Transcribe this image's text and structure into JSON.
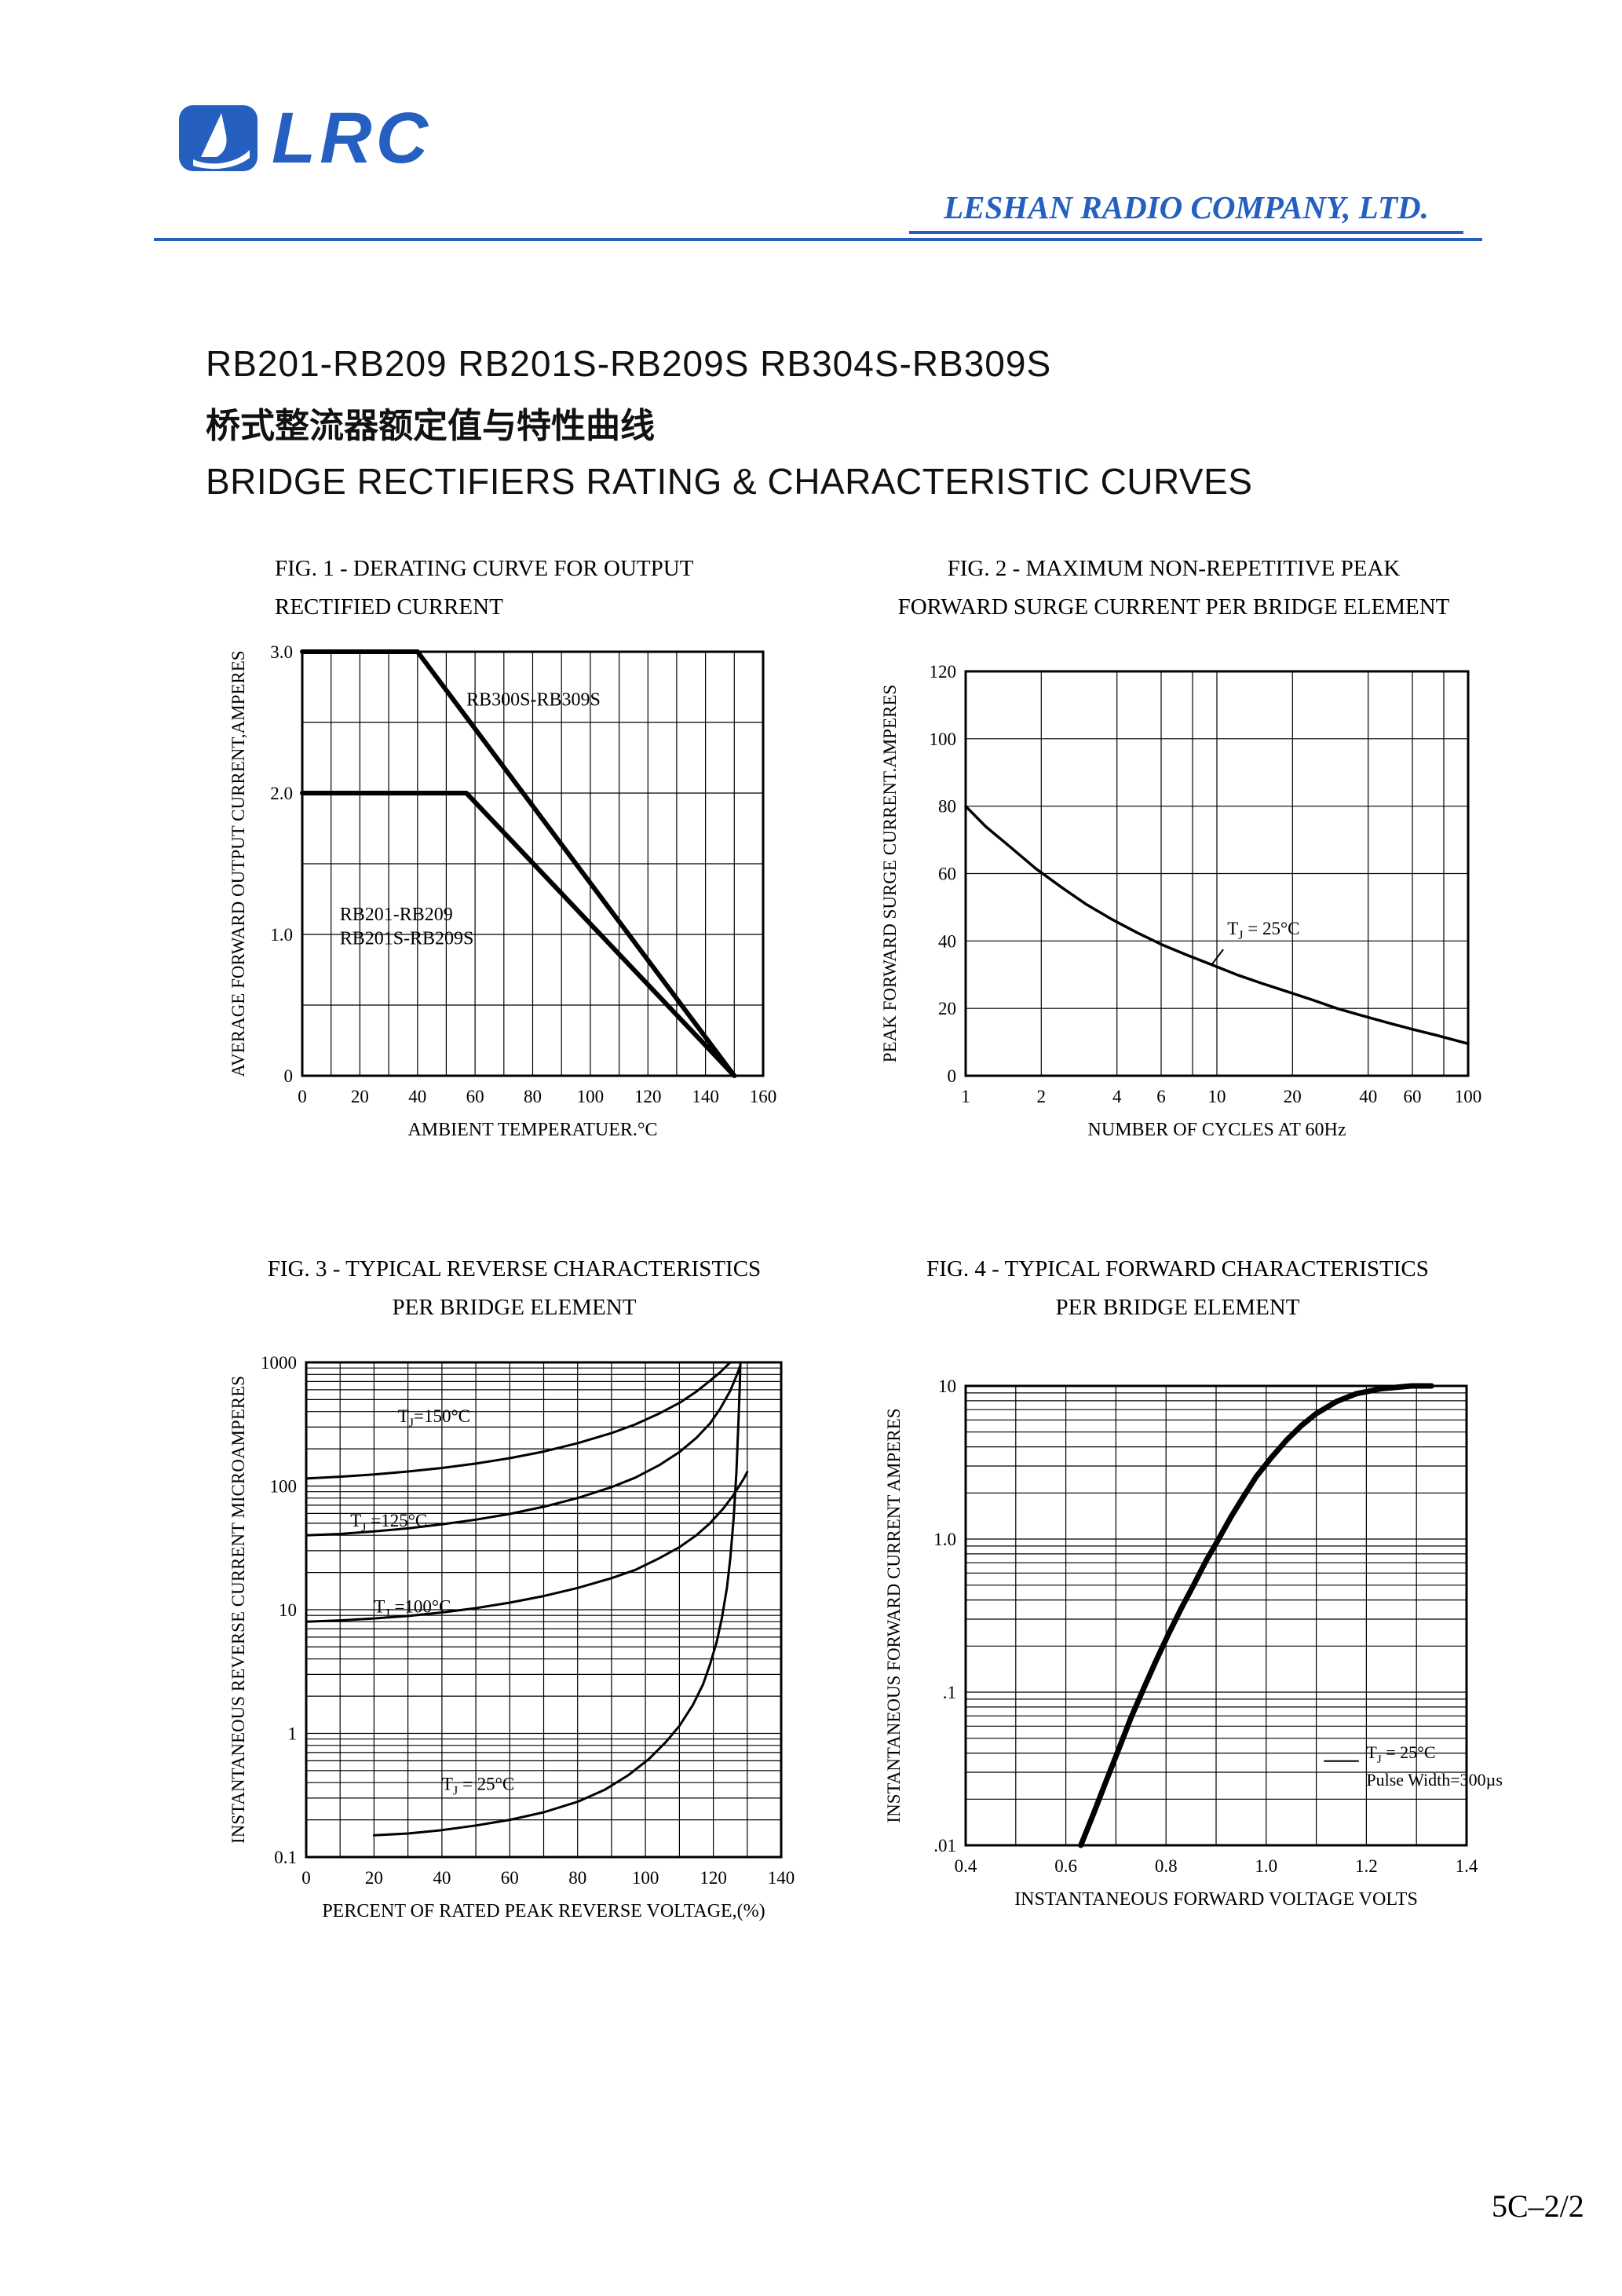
{
  "colors": {
    "accent_blue": "#2560c0",
    "ink": "#000000"
  },
  "header": {
    "logo_text": "LRC",
    "logo_icon": "sailboat-icon",
    "company": "LESHAN RADIO COMPANY, LTD."
  },
  "title_block": {
    "part_numbers": "RB201-RB209 RB201S-RB209S RB304S-RB309S",
    "chinese": "桥式整流器额定值与特性曲线",
    "english": "BRIDGE RECTIFIERS RATING & CHARACTERISTIC CURVES"
  },
  "footer": {
    "page_number": "5C–2/2"
  },
  "chart_data": [
    {
      "id": "fig1",
      "type": "line",
      "title_lines": [
        "FIG. 1 - DERATING CURVE FOR OUTPUT",
        "RECTIFIED CURRENT"
      ],
      "xlabel": "AMBIENT TEMPERATUER.°C",
      "ylabel": "AVERAGE FORWARD OUTPUT CURRENT,AMPERES",
      "x_scale": "linear",
      "y_scale": "linear",
      "xlim": [
        0,
        160
      ],
      "ylim": [
        0,
        3
      ],
      "margins": {
        "l": 100,
        "t": 25,
        "r": 18,
        "b": 100
      },
      "x_grid": {
        "step": 10
      },
      "y_grid": {
        "step": 0.5
      },
      "x_ticks": [
        {
          "v": 0,
          "label": "0"
        },
        {
          "v": 20,
          "label": "20"
        },
        {
          "v": 40,
          "label": "40"
        },
        {
          "v": 60,
          "label": "60"
        },
        {
          "v": 80,
          "label": "80"
        },
        {
          "v": 100,
          "label": "100"
        },
        {
          "v": 120,
          "label": "120"
        },
        {
          "v": 140,
          "label": "140"
        },
        {
          "v": 160,
          "label": "160"
        }
      ],
      "y_ticks": [
        {
          "v": 0,
          "label": "0"
        },
        {
          "v": 1,
          "label": "1.0"
        },
        {
          "v": 2,
          "label": "2.0"
        },
        {
          "v": 3,
          "label": "3.0"
        }
      ],
      "series": [
        {
          "name": "RB300S-RB309S",
          "width": 6,
          "points": [
            [
              0,
              3
            ],
            [
              40,
              3
            ],
            [
              150,
              0
            ]
          ]
        },
        {
          "name": "RB201-RB209 RB201S-RB209S",
          "width": 6,
          "points": [
            [
              0,
              2
            ],
            [
              57,
              2
            ],
            [
              150,
              0
            ]
          ]
        }
      ],
      "annotations": [
        {
          "text": "RB300S-RB309S",
          "x": 57,
          "y": 2.62,
          "size": 24
        },
        {
          "text": "RB201-RB209",
          "x": 13,
          "y": 1.1,
          "size": 24
        },
        {
          "text": "RB201S-RB209S",
          "x": 13,
          "y": 0.93,
          "size": 24
        }
      ],
      "leaders": []
    },
    {
      "id": "fig2",
      "type": "line",
      "title_lines": [
        "FIG. 2 - MAXIMUM NON-REPETITIVE PEAK",
        "FORWARD SURGE CURRENT PER BRIDGE ELEMENT"
      ],
      "xlabel": "NUMBER OF CYCLES AT 60Hz",
      "ylabel": "PEAK FORWARD SURGE CURRENT.AMPERES",
      "x_scale": "log",
      "y_scale": "linear",
      "xlim": [
        1,
        100
      ],
      "ylim": [
        0,
        120
      ],
      "margins": {
        "l": 115,
        "t": 50,
        "r": 10,
        "b": 100
      },
      "x_grid": {
        "values": [
          1,
          2,
          4,
          6,
          8,
          10,
          20,
          40,
          60,
          80,
          100
        ]
      },
      "y_grid": {
        "step": 20
      },
      "x_ticks": [
        {
          "v": 1,
          "label": "1"
        },
        {
          "v": 2,
          "label": "2"
        },
        {
          "v": 4,
          "label": "4"
        },
        {
          "v": 6,
          "label": "6"
        },
        {
          "v": 10,
          "label": "10"
        },
        {
          "v": 20,
          "label": "20"
        },
        {
          "v": 40,
          "label": "40"
        },
        {
          "v": 60,
          "label": "60"
        },
        {
          "v": 100,
          "label": "100"
        }
      ],
      "y_ticks": [
        {
          "v": 0,
          "label": "0"
        },
        {
          "v": 20,
          "label": "20"
        },
        {
          "v": 40,
          "label": "40"
        },
        {
          "v": 60,
          "label": "60"
        },
        {
          "v": 80,
          "label": "80"
        },
        {
          "v": 100,
          "label": "100"
        },
        {
          "v": 120,
          "label": "120"
        }
      ],
      "series": [
        {
          "name": "surge-current",
          "width": 3.5,
          "points": [
            [
              1,
              80
            ],
            [
              1.2,
              74
            ],
            [
              1.5,
              68
            ],
            [
              1.9,
              61.5
            ],
            [
              2.4,
              56
            ],
            [
              3,
              51
            ],
            [
              3.8,
              46.5
            ],
            [
              4.8,
              42.5
            ],
            [
              6,
              39
            ],
            [
              7.5,
              36
            ],
            [
              9.5,
              33
            ],
            [
              12,
              30
            ],
            [
              15,
              27.5
            ],
            [
              19,
              25
            ],
            [
              24,
              22.5
            ],
            [
              30,
              20
            ],
            [
              38,
              17.8
            ],
            [
              48,
              15.7
            ],
            [
              60,
              13.8
            ],
            [
              75,
              12
            ],
            [
              100,
              9.5
            ]
          ]
        }
      ],
      "annotations": [
        {
          "text": "T_{J} = 25°C",
          "x": 11,
          "y": 42,
          "size": 23
        }
      ],
      "leaders": [
        [
          [
            10.6,
            37.5
          ],
          [
            9.5,
            32.8
          ]
        ]
      ]
    },
    {
      "id": "fig3",
      "type": "line",
      "title_lines": [
        "FIG. 3 - TYPICAL REVERSE CHARACTERISTICS",
        "PER BRIDGE ELEMENT"
      ],
      "xlabel": "PERCENT OF RATED PEAK REVERSE VOLTAGE,(%)",
      "ylabel": "INSTANTANEOUS REVERSE CURRENT MICROAMPERES",
      "x_scale": "linear",
      "y_scale": "log",
      "xlim": [
        0,
        140
      ],
      "ylim": [
        0.1,
        1000
      ],
      "margins": {
        "l": 105,
        "t": 45,
        "r": 20,
        "b": 115
      },
      "x_grid": {
        "step": 10
      },
      "y_grid": {
        "log": true
      },
      "x_ticks": [
        {
          "v": 0,
          "label": "0"
        },
        {
          "v": 20,
          "label": "20"
        },
        {
          "v": 40,
          "label": "40"
        },
        {
          "v": 60,
          "label": "60"
        },
        {
          "v": 80,
          "label": "80"
        },
        {
          "v": 100,
          "label": "100"
        },
        {
          "v": 120,
          "label": "120"
        },
        {
          "v": 140,
          "label": "140"
        }
      ],
      "y_ticks": [
        {
          "v": 0.1,
          "label": "0.1"
        },
        {
          "v": 1,
          "label": "1"
        },
        {
          "v": 10,
          "label": "10"
        },
        {
          "v": 100,
          "label": "100"
        },
        {
          "v": 1000,
          "label": "1000"
        }
      ],
      "series": [
        {
          "name": "Tj=150C",
          "width": 3,
          "points": [
            [
              0,
              115
            ],
            [
              10,
              119
            ],
            [
              20,
              124
            ],
            [
              30,
              131
            ],
            [
              40,
              140
            ],
            [
              50,
              152
            ],
            [
              60,
              168
            ],
            [
              70,
              190
            ],
            [
              80,
              222
            ],
            [
              90,
              268
            ],
            [
              97,
              315
            ],
            [
              104,
              385
            ],
            [
              110,
              470
            ],
            [
              115,
              580
            ],
            [
              119,
              710
            ],
            [
              122,
              830
            ],
            [
              124,
              940
            ],
            [
              125,
              1000
            ]
          ]
        },
        {
          "name": "Tj=125C",
          "width": 3,
          "points": [
            [
              0,
              40
            ],
            [
              10,
              41
            ],
            [
              20,
              43
            ],
            [
              30,
              45.5
            ],
            [
              40,
              49
            ],
            [
              50,
              53.5
            ],
            [
              60,
              59.5
            ],
            [
              70,
              68
            ],
            [
              80,
              80
            ],
            [
              90,
              98
            ],
            [
              97,
              117
            ],
            [
              104,
              147
            ],
            [
              110,
              188
            ],
            [
              115,
              245
            ],
            [
              119,
              320
            ],
            [
              122,
              420
            ],
            [
              125,
              590
            ],
            [
              127,
              800
            ],
            [
              128,
              950
            ]
          ]
        },
        {
          "name": "Tj=100C",
          "width": 3,
          "points": [
            [
              0,
              8
            ],
            [
              10,
              8.2
            ],
            [
              20,
              8.5
            ],
            [
              30,
              8.9
            ],
            [
              40,
              9.5
            ],
            [
              50,
              10.3
            ],
            [
              60,
              11.4
            ],
            [
              70,
              12.9
            ],
            [
              80,
              15
            ],
            [
              90,
              18
            ],
            [
              97,
              21
            ],
            [
              104,
              26
            ],
            [
              110,
              32
            ],
            [
              115,
              40
            ],
            [
              119,
              50
            ],
            [
              123,
              66
            ],
            [
              126,
              85
            ],
            [
              129,
              115
            ],
            [
              130,
              130
            ]
          ]
        },
        {
          "name": "Tj=25C",
          "width": 3,
          "points": [
            [
              20,
              0.15
            ],
            [
              30,
              0.155
            ],
            [
              40,
              0.165
            ],
            [
              50,
              0.18
            ],
            [
              60,
              0.2
            ],
            [
              70,
              0.23
            ],
            [
              80,
              0.28
            ],
            [
              88,
              0.35
            ],
            [
              95,
              0.46
            ],
            [
              101,
              0.62
            ],
            [
              106,
              0.85
            ],
            [
              110,
              1.15
            ],
            [
              114,
              1.7
            ],
            [
              117,
              2.5
            ],
            [
              119,
              3.6
            ],
            [
              121,
              5.5
            ],
            [
              122.5,
              8.5
            ],
            [
              124,
              15
            ],
            [
              125,
              26
            ],
            [
              126,
              55
            ],
            [
              126.8,
              130
            ],
            [
              127.4,
              320
            ],
            [
              127.8,
              650
            ],
            [
              128,
              1000
            ]
          ]
        }
      ],
      "annotations": [
        {
          "text": "T_{J}=150°C",
          "x": 27,
          "y": 330,
          "size": 23
        },
        {
          "text": "T_{J} =125°C",
          "x": 13,
          "y": 47,
          "size": 23
        },
        {
          "text": "T_{J} =100°C",
          "x": 20,
          "y": 9.5,
          "size": 23
        },
        {
          "text": "T_{J} = 25°C",
          "x": 40,
          "y": 0.35,
          "size": 23
        }
      ],
      "leaders": []
    },
    {
      "id": "fig4",
      "type": "line",
      "title_lines": [
        "FIG. 4 - TYPICAL FORWARD CHARACTERISTICS",
        "PER BRIDGE ELEMENT"
      ],
      "xlabel": "INSTANTANEOUS FORWARD VOLTAGE VOLTS",
      "ylabel": "INSTANTANEOUS FORWARD CURRENT AMPERES",
      "x_scale": "linear",
      "y_scale": "log",
      "xlim": [
        0.4,
        1.4
      ],
      "ylim": [
        0.01,
        10
      ],
      "margins": {
        "l": 110,
        "t": 75,
        "r": 12,
        "b": 110
      },
      "x_grid": {
        "step": 0.1
      },
      "y_grid": {
        "log": true
      },
      "x_ticks": [
        {
          "v": 0.4,
          "label": "0.4"
        },
        {
          "v": 0.6,
          "label": "0.6"
        },
        {
          "v": 0.8,
          "label": "0.8"
        },
        {
          "v": 1.0,
          "label": "1.0"
        },
        {
          "v": 1.2,
          "label": "1.2"
        },
        {
          "v": 1.4,
          "label": "1.4"
        }
      ],
      "y_ticks": [
        {
          "v": 0.01,
          "label": ".01"
        },
        {
          "v": 0.1,
          "label": ".1"
        },
        {
          "v": 1,
          "label": "1.0"
        },
        {
          "v": 10,
          "label": "10"
        }
      ],
      "series": [
        {
          "name": "forward-characteristic",
          "width": 7,
          "points": [
            [
              0.63,
              0.01
            ],
            [
              0.655,
              0.016
            ],
            [
              0.68,
              0.026
            ],
            [
              0.705,
              0.042
            ],
            [
              0.73,
              0.068
            ],
            [
              0.755,
              0.105
            ],
            [
              0.78,
              0.16
            ],
            [
              0.805,
              0.24
            ],
            [
              0.83,
              0.35
            ],
            [
              0.855,
              0.5
            ],
            [
              0.88,
              0.72
            ],
            [
              0.905,
              1.0
            ],
            [
              0.93,
              1.4
            ],
            [
              0.955,
              1.9
            ],
            [
              0.98,
              2.55
            ],
            [
              1.01,
              3.4
            ],
            [
              1.04,
              4.4
            ],
            [
              1.07,
              5.5
            ],
            [
              1.1,
              6.6
            ],
            [
              1.14,
              7.9
            ],
            [
              1.18,
              8.9
            ],
            [
              1.23,
              9.6
            ],
            [
              1.29,
              10
            ],
            [
              1.33,
              10
            ]
          ]
        }
      ],
      "annotations": [
        {
          "text": "T_{J} = 25°C",
          "x": 1.2,
          "y": 0.037,
          "size": 22
        },
        {
          "text": "Pulse Width=300µs",
          "x": 1.2,
          "y": 0.0245,
          "size": 22
        }
      ],
      "leaders": [
        [
          [
            1.115,
            0.0355
          ],
          [
            1.185,
            0.0355
          ]
        ]
      ]
    }
  ]
}
